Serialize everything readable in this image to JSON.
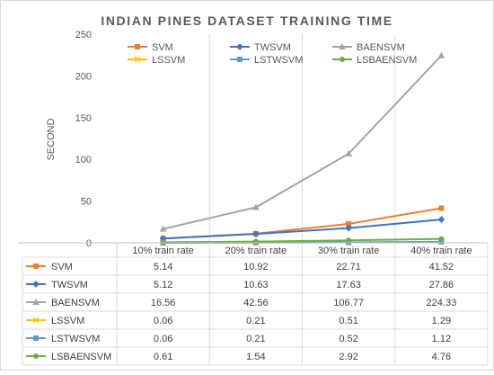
{
  "chart_data": {
    "type": "line",
    "title": "INDIAN PINES DATASET TRAINING TIME",
    "xlabel": "",
    "ylabel": "SECOND",
    "ylim": [
      0,
      250
    ],
    "yticks": [
      "0",
      "50",
      "100",
      "150",
      "200",
      "250"
    ],
    "grid": "vertical",
    "legend_position": "top",
    "categories": [
      "10% train rate",
      "20% train rate",
      "30% train rate",
      "40% train rate"
    ],
    "series": [
      {
        "name": "SVM",
        "values": [
          5.14,
          10.92,
          22.71,
          41.52
        ],
        "display": [
          "5.14",
          "10.92",
          "22.71",
          "41.52"
        ],
        "color": "#ED7D31",
        "marker": "square"
      },
      {
        "name": "TWSVM",
        "values": [
          5.12,
          10.63,
          17.63,
          27.86
        ],
        "display": [
          "5.12",
          "10.63",
          "17.63",
          "27.86"
        ],
        "color": "#4472C4",
        "marker": "diamond"
      },
      {
        "name": "BAENSVM",
        "values": [
          16.56,
          42.56,
          106.77,
          224.33
        ],
        "display": [
          "16.56",
          "42.56",
          "106.77",
          "224.33"
        ],
        "color": "#A5A5A5",
        "marker": "triangle"
      },
      {
        "name": "LSSVM",
        "values": [
          0.06,
          0.21,
          0.51,
          1.29
        ],
        "display": [
          "0.06",
          "0.21",
          "0.51",
          "1.29"
        ],
        "color": "#FFC000",
        "marker": "x"
      },
      {
        "name": "LSTWSVM",
        "values": [
          0.06,
          0.21,
          0.52,
          1.12
        ],
        "display": [
          "0.06",
          "0.21",
          "0.52",
          "1.12"
        ],
        "color": "#5B9BD5",
        "marker": "square"
      },
      {
        "name": "LSBAENSVM",
        "values": [
          0.61,
          1.54,
          2.92,
          4.76
        ],
        "display": [
          "0.61",
          "1.54",
          "2.92",
          "4.76"
        ],
        "color": "#70AD47",
        "marker": "circle"
      }
    ]
  }
}
